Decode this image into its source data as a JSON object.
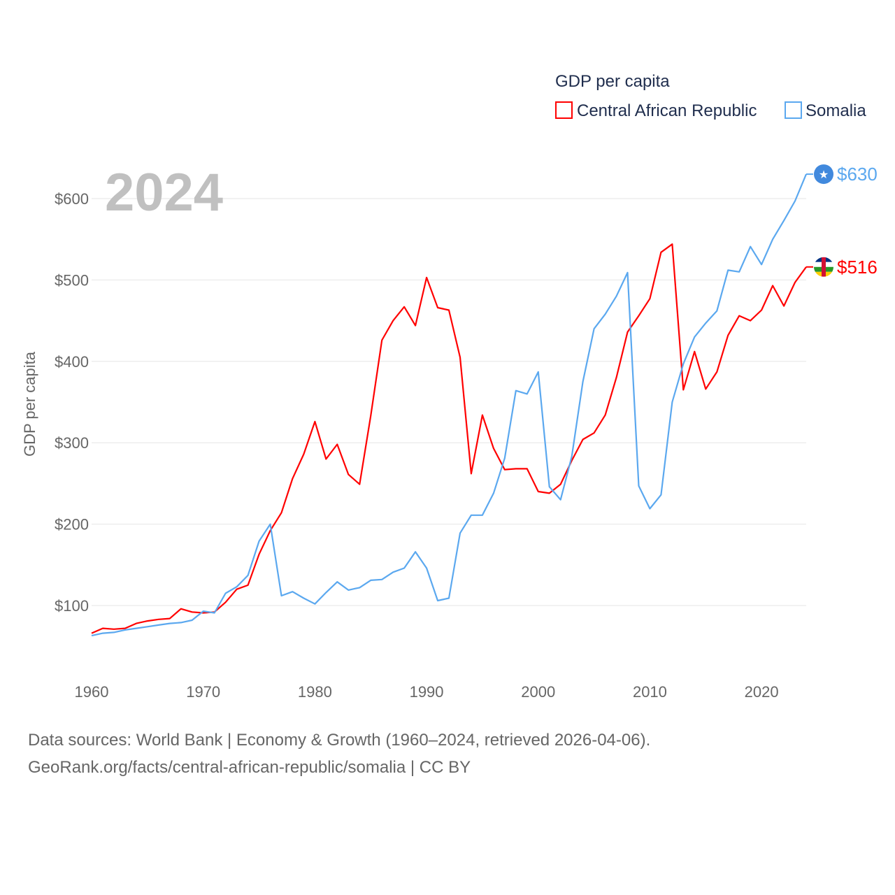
{
  "chart_data": {
    "type": "line",
    "title": "GDP per capita",
    "ylabel": "GDP per capita",
    "xlabel": "",
    "year_label": "2024",
    "xlim": [
      1960,
      2024
    ],
    "ylim": [
      40,
      680
    ],
    "grid": true,
    "legend_placement": "top-right",
    "x_ticks": [
      1960,
      1970,
      1980,
      1990,
      2000,
      2010,
      2020
    ],
    "x_tick_labels": [
      "1960",
      "1970",
      "1980",
      "1990",
      "2000",
      "2010",
      "2020"
    ],
    "y_ticks": [
      100,
      200,
      300,
      400,
      500,
      600
    ],
    "y_tick_labels": [
      "$100",
      "$200",
      "$300",
      "$400",
      "$500",
      "$600"
    ],
    "series": [
      {
        "name": "Central African Republic",
        "color": "#ff0000",
        "end_label": "$516",
        "flag_icon": "central-african-republic-flag-icon",
        "start_year": 1960,
        "values": [
          66,
          72,
          71,
          72,
          78,
          81,
          83,
          84,
          96,
          92,
          91,
          92,
          104,
          120,
          125,
          163,
          192,
          214,
          256,
          286,
          326,
          280,
          298,
          261,
          249,
          333,
          426,
          450,
          467,
          444,
          503,
          466,
          463,
          405,
          262,
          334,
          293,
          267,
          268,
          268,
          240,
          238,
          249,
          278,
          304,
          312,
          334,
          380,
          436,
          456,
          477,
          534,
          544,
          365,
          412,
          366,
          387,
          432,
          456,
          450,
          463,
          493,
          468,
          497,
          516
        ]
      },
      {
        "name": "Somalia",
        "color": "#5ba8ef",
        "end_label": "$630",
        "flag_icon": "somalia-flag-icon",
        "start_year": 1960,
        "values": [
          63,
          66,
          67,
          70,
          72,
          74,
          76,
          78,
          79,
          82,
          93,
          91,
          115,
          123,
          137,
          179,
          200,
          112,
          117,
          109,
          102,
          116,
          129,
          119,
          122,
          131,
          132,
          141,
          146,
          166,
          146,
          106,
          109,
          189,
          211,
          211,
          238,
          281,
          364,
          360,
          387,
          246,
          230,
          283,
          375,
          440,
          458,
          480,
          509,
          247,
          219,
          236,
          350,
          397,
          430,
          447,
          462,
          512,
          510,
          541,
          519,
          550,
          573,
          597,
          630
        ]
      }
    ]
  },
  "footer": {
    "line1": "Data sources: World Bank | Economy & Growth (1960–2024, retrieved 2026-04-06).",
    "line2": "GeoRank.org/facts/central-african-republic/somalia | CC BY"
  }
}
